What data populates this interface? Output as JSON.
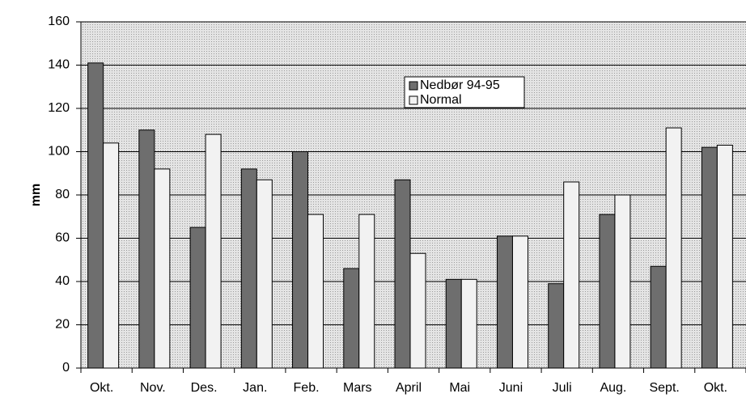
{
  "chart_data": {
    "type": "bar",
    "y_label": "mm",
    "categories": [
      "Okt.",
      "Nov.",
      "Des.",
      "Jan.",
      "Feb.",
      "Mars",
      "April",
      "Mai",
      "Juni",
      "Juli",
      "Aug.",
      "Sept.",
      "Okt."
    ],
    "series": [
      {
        "name": "Nedbør 94-95",
        "color": "#6e6e6e",
        "values": [
          141,
          110,
          65,
          92,
          100,
          46,
          87,
          41,
          61,
          39,
          71,
          47,
          102
        ]
      },
      {
        "name": "Normal",
        "color": "#f2f2f2",
        "values": [
          104,
          92,
          108,
          87,
          71,
          71,
          53,
          41,
          61,
          86,
          80,
          111,
          103
        ]
      }
    ],
    "ylim": [
      0,
      160
    ],
    "yticks": [
      0,
      20,
      40,
      60,
      80,
      100,
      120,
      140,
      160
    ],
    "grid": true
  }
}
